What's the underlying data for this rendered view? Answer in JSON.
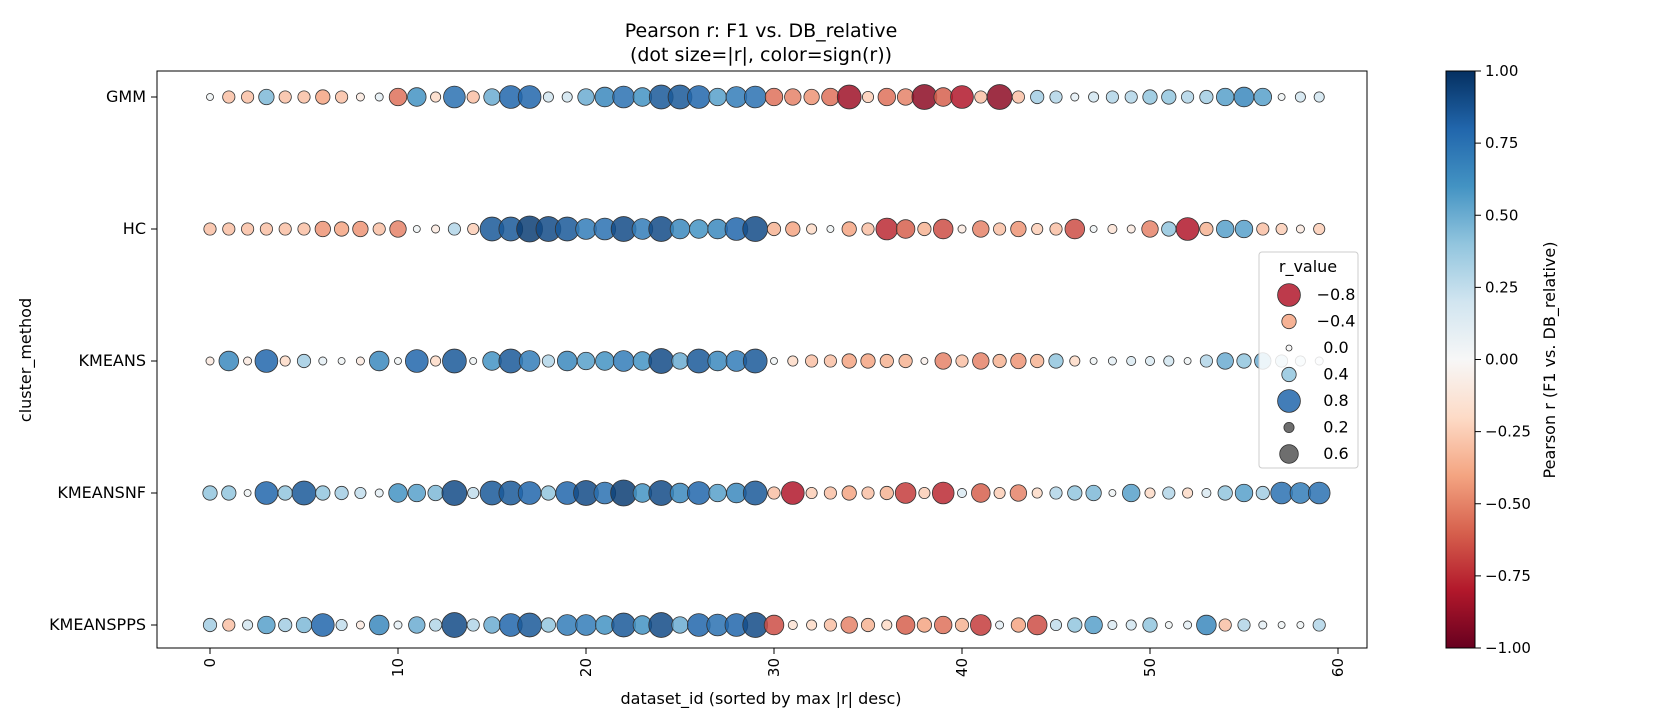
{
  "chart_data": {
    "type": "scatter",
    "title": "Pearson r: F1 vs. DB_relative",
    "subtitle": "(dot size=|r|, color=sign(r))",
    "xlabel": "dataset_id (sorted by max |r| desc)",
    "ylabel": "cluster_method",
    "xlim": [
      -3,
      62
    ],
    "x_ticks": [
      "0",
      "10",
      "20",
      "30",
      "40",
      "50",
      "60"
    ],
    "categories": [
      "GMM",
      "HC",
      "KMEANS",
      "KMEANSNF",
      "KMEANSPPS"
    ],
    "x": [
      0,
      1,
      2,
      3,
      4,
      5,
      6,
      7,
      8,
      9,
      10,
      11,
      12,
      13,
      14,
      15,
      16,
      17,
      18,
      19,
      20,
      21,
      22,
      23,
      24,
      25,
      26,
      27,
      28,
      29,
      30,
      31,
      32,
      33,
      34,
      35,
      36,
      37,
      38,
      39,
      40,
      41,
      42,
      43,
      44,
      45,
      46,
      47,
      48,
      49,
      50,
      51,
      52,
      53,
      54,
      55,
      56,
      57,
      58,
      59
    ],
    "series": [
      {
        "values": [
          0.05,
          -0.3,
          -0.3,
          0.45,
          -0.3,
          -0.3,
          -0.4,
          -0.3,
          -0.1,
          0.1,
          -0.55,
          0.6,
          -0.2,
          0.75,
          -0.3,
          0.5,
          0.8,
          0.8,
          0.2,
          0.2,
          0.5,
          0.65,
          0.75,
          0.6,
          0.85,
          0.85,
          0.8,
          0.55,
          0.7,
          0.75,
          -0.55,
          -0.5,
          -0.45,
          -0.55,
          -0.85,
          -0.25,
          -0.55,
          -0.5,
          -0.9,
          -0.6,
          -0.8,
          -0.3,
          -0.9,
          -0.3,
          0.35,
          0.3,
          0.1,
          0.2,
          0.3,
          0.3,
          0.4,
          0.4,
          0.3,
          0.35,
          0.55,
          0.65,
          0.55,
          0.05,
          0.2,
          0.2
        ]
      },
      {
        "values": [
          -0.3,
          -0.3,
          -0.3,
          -0.3,
          -0.3,
          -0.3,
          -0.45,
          -0.4,
          -0.45,
          -0.3,
          -0.5,
          0.05,
          -0.1,
          0.3,
          -0.25,
          0.85,
          0.85,
          0.95,
          0.9,
          0.85,
          0.7,
          0.75,
          0.9,
          0.7,
          0.9,
          0.65,
          0.6,
          0.65,
          0.8,
          0.9,
          -0.35,
          -0.4,
          -0.2,
          0.05,
          -0.4,
          -0.3,
          -0.75,
          -0.6,
          -0.35,
          -0.65,
          -0.1,
          -0.5,
          -0.3,
          -0.45,
          -0.25,
          -0.3,
          -0.65,
          0.05,
          -0.15,
          -0.1,
          -0.5,
          0.4,
          -0.8,
          -0.35,
          0.55,
          0.55,
          -0.3,
          -0.25,
          -0.1,
          -0.25
        ]
      },
      {
        "values": [
          -0.1,
          0.65,
          -0.1,
          0.8,
          -0.2,
          0.35,
          0.1,
          0.05,
          -0.1,
          0.65,
          0.05,
          0.8,
          -0.2,
          0.85,
          0.05,
          0.6,
          0.85,
          0.7,
          0.3,
          0.65,
          0.55,
          0.6,
          0.7,
          0.6,
          0.9,
          0.5,
          0.85,
          0.65,
          0.7,
          0.85,
          0.05,
          -0.2,
          -0.3,
          -0.3,
          -0.4,
          -0.4,
          -0.35,
          -0.35,
          -0.05,
          -0.5,
          -0.3,
          -0.5,
          -0.35,
          -0.45,
          -0.35,
          0.4,
          -0.2,
          0.05,
          0.1,
          0.15,
          0.15,
          0.2,
          0.05,
          0.3,
          0.5,
          0.4,
          0.5,
          0.3,
          0.2,
          0.1
        ]
      },
      {
        "values": [
          0.4,
          0.4,
          0.05,
          0.8,
          0.4,
          0.85,
          0.4,
          0.35,
          0.25,
          0.1,
          0.6,
          0.55,
          0.45,
          0.9,
          0.25,
          0.85,
          0.85,
          0.8,
          0.4,
          0.8,
          0.9,
          0.75,
          0.95,
          0.6,
          0.9,
          0.65,
          0.8,
          0.55,
          0.65,
          0.85,
          -0.3,
          -0.8,
          -0.25,
          -0.3,
          -0.4,
          -0.3,
          -0.35,
          -0.7,
          -0.25,
          -0.75,
          0.15,
          -0.6,
          -0.25,
          -0.5,
          -0.2,
          0.3,
          0.4,
          0.45,
          0.05,
          0.55,
          -0.2,
          0.3,
          -0.2,
          0.15,
          0.4,
          0.55,
          0.35,
          0.75,
          0.7,
          0.75
        ]
      },
      {
        "values": [
          0.35,
          -0.3,
          0.2,
          0.55,
          0.35,
          0.45,
          0.8,
          0.25,
          -0.1,
          0.65,
          0.1,
          0.5,
          0.3,
          0.9,
          0.3,
          0.5,
          0.8,
          0.85,
          0.4,
          0.7,
          0.7,
          0.6,
          0.85,
          0.6,
          0.9,
          0.5,
          0.8,
          0.75,
          0.8,
          0.9,
          -0.65,
          -0.15,
          -0.2,
          -0.3,
          -0.5,
          -0.35,
          -0.2,
          -0.6,
          -0.4,
          -0.55,
          -0.35,
          -0.7,
          0.1,
          -0.4,
          -0.65,
          0.25,
          0.4,
          0.55,
          0.15,
          0.2,
          0.4,
          0.05,
          0.1,
          0.65,
          -0.3,
          0.3,
          0.1,
          0.05,
          0.05,
          0.3
        ]
      }
    ],
    "legend": {
      "title": "r_value",
      "placement": "center-right",
      "color_entries": [
        {
          "label": "−0.8",
          "value": -0.8
        },
        {
          "label": "−0.4",
          "value": -0.4
        },
        {
          "label": "0.0",
          "value": 0.0
        },
        {
          "label": "0.4",
          "value": 0.4
        },
        {
          "label": "0.8",
          "value": 0.8
        }
      ],
      "size_entries": [
        {
          "label": "0.2",
          "value": 0.2
        },
        {
          "label": "0.6",
          "value": 0.6
        }
      ]
    },
    "colorbar": {
      "label": "Pearson r (F1 vs. DB_relative)",
      "range": [
        -1,
        1
      ],
      "ticks": [
        "−1.00",
        "−0.75",
        "−0.50",
        "−0.25",
        "0.00",
        "0.25",
        "0.50",
        "0.75",
        "1.00"
      ],
      "tick_values": [
        -1,
        -0.75,
        -0.5,
        -0.25,
        0,
        0.25,
        0.5,
        0.75,
        1
      ],
      "colormap": "RdBu",
      "stops": [
        "#67001f",
        "#b2182b",
        "#d6604d",
        "#f4a582",
        "#fddbc7",
        "#f7f7f7",
        "#d1e5f0",
        "#92c5de",
        "#4393c3",
        "#2166ac",
        "#053061"
      ]
    },
    "grid": false
  }
}
